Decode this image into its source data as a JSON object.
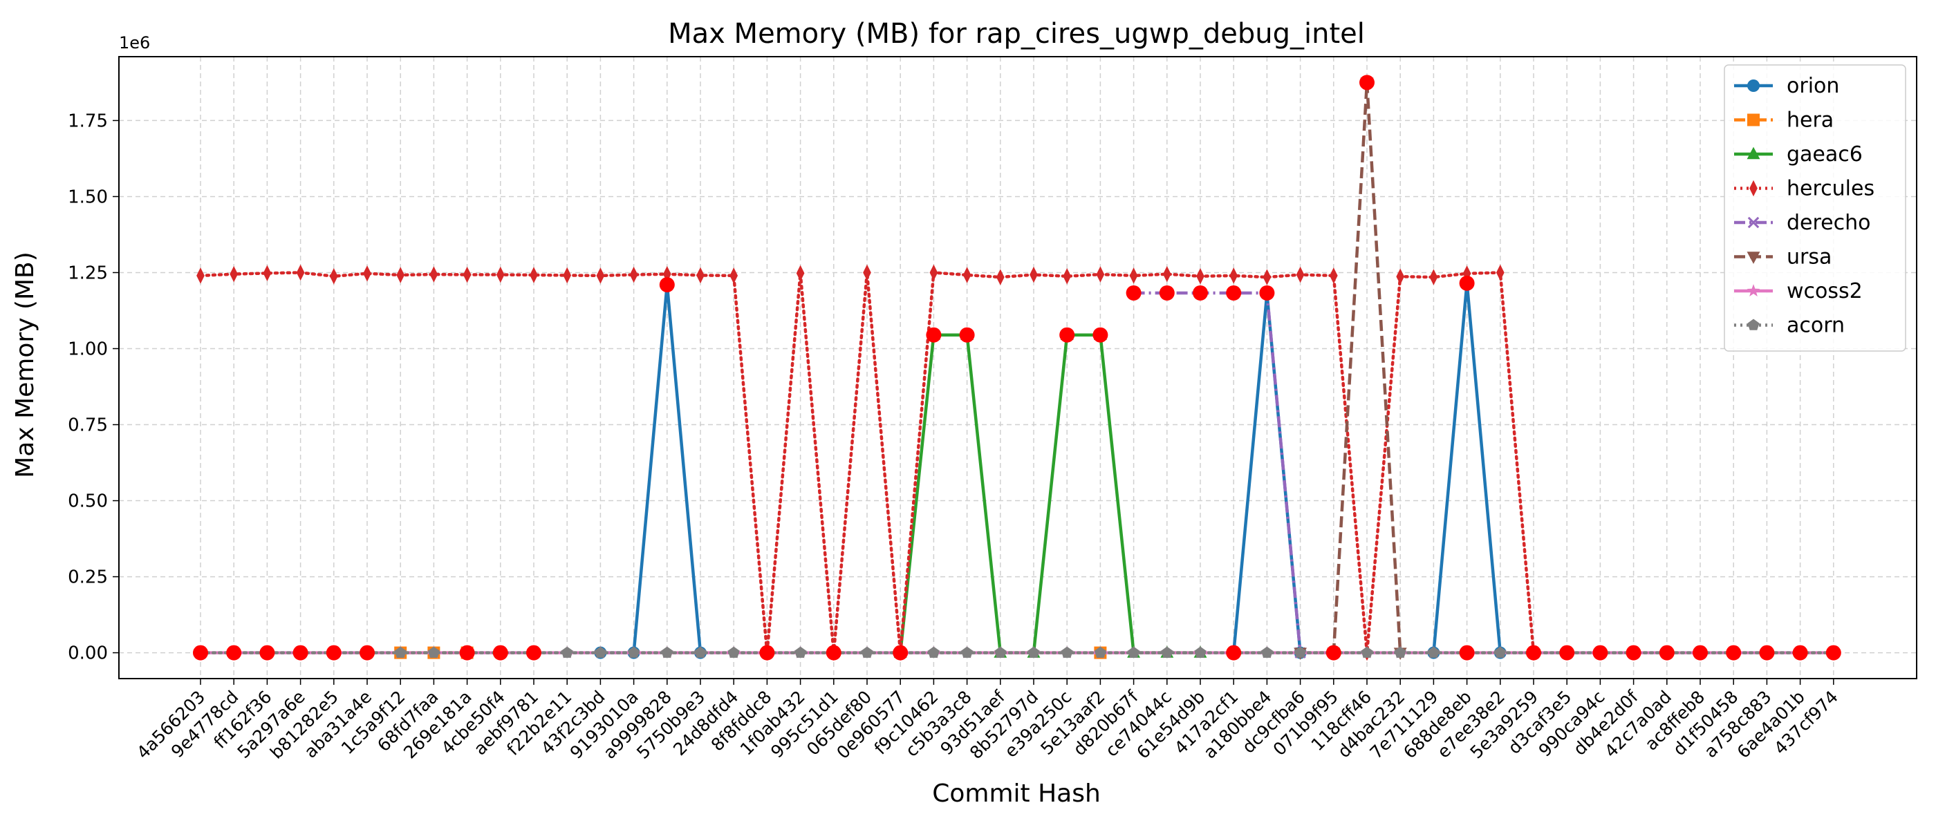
{
  "chart_data": {
    "type": "line",
    "title": "Max Memory (MB) for rap_cires_ugwp_debug_intel",
    "xlabel": "Commit Hash",
    "ylabel": "Max Memory (MB)",
    "y_offset_text": "1e6",
    "ylim": [
      -85000,
      1960000
    ],
    "y_ticks": [
      0,
      250000,
      500000,
      750000,
      1000000,
      1250000,
      1500000,
      1750000
    ],
    "y_tick_labels": [
      "0.00",
      "0.25",
      "0.50",
      "0.75",
      "1.00",
      "1.25",
      "1.50",
      "1.75"
    ],
    "grid": true,
    "legend_position": "top-right",
    "categories": [
      "4a566203",
      "9e4778cd",
      "ff162f36",
      "5a297a6e",
      "b81282e5",
      "aba31a4e",
      "1c5a9f12",
      "68fd7faa",
      "269e181a",
      "4cbe50f4",
      "aebf9781",
      "f22b2e11",
      "43f2c3bd",
      "9193010a",
      "a9999828",
      "5750b9e3",
      "24d8dfd4",
      "8f8fddc8",
      "1f0ab432",
      "995c51d1",
      "065def80",
      "0e960577",
      "f9c10462",
      "c5b3a3c8",
      "93d51aef",
      "8b52797d",
      "e39a250c",
      "5e13aaf2",
      "d820b67f",
      "ce74044c",
      "61e54d9b",
      "417a2cf1",
      "a180bbe4",
      "dc9cfba6",
      "071b9f95",
      "118cff46",
      "d4bac232",
      "7e711129",
      "688de8eb",
      "e7ee38e2",
      "5e3a9259",
      "d3caf3e5",
      "990ca94c",
      "db4e2d0f",
      "42c7a0ad",
      "ac8ffeb8",
      "d1f50458",
      "a758c883",
      "6ae4a01b",
      "437cf974"
    ],
    "series": [
      {
        "name": "orion",
        "color": "#1f77b4",
        "dash": "solid",
        "marker": "circle",
        "values": [
          null,
          null,
          null,
          null,
          null,
          null,
          null,
          null,
          null,
          null,
          null,
          null,
          0,
          0,
          1210000,
          0,
          null,
          null,
          null,
          null,
          null,
          null,
          null,
          null,
          null,
          null,
          null,
          null,
          null,
          null,
          null,
          0,
          1180000,
          0,
          null,
          null,
          null,
          0,
          1215000,
          0,
          null,
          null,
          null,
          null,
          null,
          null,
          null,
          null,
          null,
          null
        ]
      },
      {
        "name": "hera",
        "color": "#ff7f0e",
        "dash": "dashdot",
        "marker": "square",
        "values": [
          null,
          null,
          null,
          null,
          null,
          null,
          0,
          0,
          0,
          null,
          null,
          null,
          null,
          null,
          null,
          null,
          null,
          null,
          null,
          null,
          null,
          null,
          null,
          null,
          null,
          null,
          null,
          0,
          null,
          null,
          null,
          null,
          null,
          null,
          null,
          null,
          null,
          null,
          null,
          null,
          null,
          null,
          null,
          null,
          null,
          null,
          null,
          null,
          null,
          null
        ]
      },
      {
        "name": "gaeac6",
        "color": "#2ca02c",
        "dash": "solid",
        "marker": "triangle-up",
        "values": [
          null,
          null,
          null,
          null,
          null,
          null,
          null,
          null,
          null,
          null,
          null,
          null,
          null,
          null,
          null,
          null,
          null,
          null,
          null,
          null,
          null,
          0,
          1045000,
          1045000,
          0,
          0,
          1045000,
          1045000,
          0,
          0,
          0,
          null,
          null,
          null,
          null,
          null,
          null,
          null,
          null,
          null,
          null,
          null,
          null,
          null,
          null,
          null,
          null,
          null,
          null,
          null
        ]
      },
      {
        "name": "hercules",
        "color": "#d62728",
        "dash": "dotted",
        "marker": "thin-diamond",
        "values": [
          1240000,
          1245000,
          1248000,
          1250000,
          1238000,
          1247000,
          1242000,
          1244000,
          1243000,
          1243000,
          1242000,
          1241000,
          1240000,
          1243000,
          1245000,
          1241000,
          1240000,
          0,
          1248000,
          0,
          1250000,
          0,
          1250000,
          1242000,
          1235000,
          1243000,
          1238000,
          1244000,
          1240000,
          1245000,
          1238000,
          1240000,
          1235000,
          1243000,
          1240000,
          0,
          1237000,
          1235000,
          1247000,
          1250000,
          0,
          null,
          null,
          null,
          null,
          null,
          null,
          null,
          null,
          null
        ]
      },
      {
        "name": "derecho",
        "color": "#9467bd",
        "dash": "dashdot",
        "marker": "x",
        "values": [
          null,
          null,
          null,
          null,
          null,
          null,
          null,
          null,
          null,
          null,
          null,
          null,
          null,
          null,
          null,
          null,
          null,
          null,
          null,
          null,
          null,
          null,
          null,
          null,
          null,
          null,
          null,
          null,
          1183000,
          1183000,
          1183000,
          1183000,
          1183000,
          0,
          null,
          null,
          null,
          null,
          null,
          null,
          null,
          null,
          null,
          null,
          null,
          null,
          null,
          null,
          null,
          null
        ]
      },
      {
        "name": "ursa",
        "color": "#8c564b",
        "dash": "dashed",
        "marker": "triangle-down",
        "values": [
          null,
          null,
          null,
          null,
          null,
          null,
          null,
          null,
          null,
          null,
          null,
          null,
          null,
          null,
          null,
          null,
          null,
          null,
          null,
          null,
          null,
          null,
          null,
          null,
          null,
          null,
          null,
          null,
          null,
          null,
          null,
          null,
          null,
          0,
          0,
          1875000,
          0,
          null,
          null,
          null,
          null,
          null,
          null,
          null,
          null,
          null,
          null,
          null,
          null,
          null
        ]
      },
      {
        "name": "wcoss2",
        "color": "#e377c2",
        "dash": "solid",
        "marker": "star",
        "values": [
          0,
          0,
          0,
          0,
          0,
          0,
          0,
          0,
          0,
          0,
          0,
          0,
          0,
          0,
          0,
          0,
          0,
          0,
          0,
          0,
          0,
          0,
          0,
          0,
          0,
          0,
          0,
          0,
          0,
          0,
          0,
          0,
          0,
          0,
          0,
          0,
          0,
          0,
          0,
          0,
          0,
          0,
          0,
          0,
          0,
          0,
          0,
          0,
          0,
          0
        ]
      },
      {
        "name": "acorn",
        "color": "#7f7f7f",
        "dash": "dotted",
        "marker": "pentagon",
        "values": [
          0,
          0,
          0,
          0,
          0,
          0,
          0,
          0,
          0,
          0,
          0,
          0,
          0,
          0,
          0,
          0,
          0,
          0,
          0,
          0,
          0,
          0,
          0,
          0,
          0,
          0,
          0,
          0,
          0,
          0,
          0,
          0,
          0,
          0,
          0,
          0,
          0,
          0,
          0,
          0,
          0,
          0,
          0,
          0,
          0,
          0,
          0,
          0,
          0,
          0
        ]
      }
    ],
    "highlight_points": {
      "color": "#ff0000",
      "points": [
        {
          "category": "4a566203",
          "value": 0
        },
        {
          "category": "9e4778cd",
          "value": 0
        },
        {
          "category": "ff162f36",
          "value": 0
        },
        {
          "category": "5a297a6e",
          "value": 0
        },
        {
          "category": "b81282e5",
          "value": 0
        },
        {
          "category": "aba31a4e",
          "value": 0
        },
        {
          "category": "269e181a",
          "value": 0
        },
        {
          "category": "4cbe50f4",
          "value": 0
        },
        {
          "category": "aebf9781",
          "value": 0
        },
        {
          "category": "a9999828",
          "value": 1210000
        },
        {
          "category": "8f8fddc8",
          "value": 0
        },
        {
          "category": "995c51d1",
          "value": 0
        },
        {
          "category": "0e960577",
          "value": 0
        },
        {
          "category": "f9c10462",
          "value": 1045000
        },
        {
          "category": "c5b3a3c8",
          "value": 1045000
        },
        {
          "category": "e39a250c",
          "value": 1045000
        },
        {
          "category": "5e13aaf2",
          "value": 1045000
        },
        {
          "category": "d820b67f",
          "value": 1183000
        },
        {
          "category": "ce74044c",
          "value": 1183000
        },
        {
          "category": "61e54d9b",
          "value": 1183000
        },
        {
          "category": "417a2cf1",
          "value": 1183000
        },
        {
          "category": "417a2cf1",
          "value": 0
        },
        {
          "category": "a180bbe4",
          "value": 1183000
        },
        {
          "category": "071b9f95",
          "value": 0
        },
        {
          "category": "118cff46",
          "value": 1875000
        },
        {
          "category": "688de8eb",
          "value": 1215000
        },
        {
          "category": "688de8eb",
          "value": 0
        },
        {
          "category": "5e3a9259",
          "value": 0
        },
        {
          "category": "d3caf3e5",
          "value": 0
        },
        {
          "category": "990ca94c",
          "value": 0
        },
        {
          "category": "db4e2d0f",
          "value": 0
        },
        {
          "category": "42c7a0ad",
          "value": 0
        },
        {
          "category": "ac8ffeb8",
          "value": 0
        },
        {
          "category": "d1f50458",
          "value": 0
        },
        {
          "category": "a758c883",
          "value": 0
        },
        {
          "category": "6ae4a01b",
          "value": 0
        },
        {
          "category": "437cf974",
          "value": 0
        }
      ]
    }
  }
}
